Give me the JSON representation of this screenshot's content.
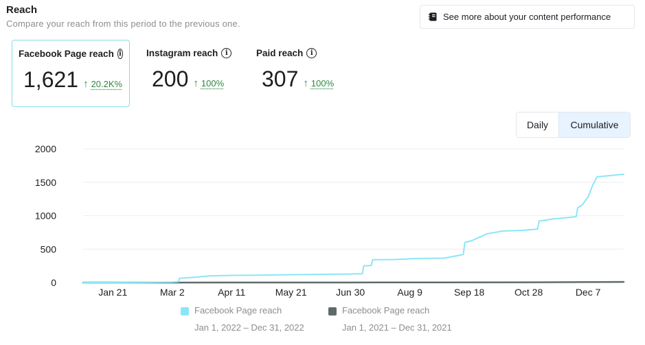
{
  "header": {
    "title": "Reach",
    "subtitle": "Compare your reach from this period to the previous one."
  },
  "performance_button": {
    "label": "See more about your content performance",
    "icon": "notebook-icon"
  },
  "metrics": [
    {
      "label": "Facebook Page reach",
      "value": "1,621",
      "change": "20.2K%"
    },
    {
      "label": "Instagram reach",
      "value": "200",
      "change": "100%"
    },
    {
      "label": "Paid reach",
      "value": "307",
      "change": "100%"
    }
  ],
  "toggle": {
    "daily": "Daily",
    "cumulative": "Cumulative",
    "selected": "cumulative"
  },
  "colors": {
    "current": "#8ae6f7",
    "previous": "#5f6b6a",
    "accent_border": "#86dbeb",
    "positive": "#2e8540"
  },
  "legend": [
    {
      "name": "Facebook Page reach",
      "range": "Jan 1, 2022 – Dec 31, 2022"
    },
    {
      "name": "Facebook Page reach",
      "range": "Jan 1, 2021 – Dec 31, 2021"
    }
  ],
  "chart_data": {
    "type": "line",
    "title": "",
    "xlabel": "",
    "ylabel": "",
    "ylim": [
      0,
      2000
    ],
    "y_ticks": [
      0,
      500,
      1000,
      1500,
      2000
    ],
    "x_ticks": [
      "Jan 21",
      "Mar 2",
      "Apr 11",
      "May 21",
      "Jun 30",
      "Aug 9",
      "Sep 18",
      "Oct 28",
      "Dec 7"
    ],
    "x_tick_days": [
      20,
      60,
      100,
      140,
      180,
      220,
      260,
      300,
      340
    ],
    "x_range_days": [
      0,
      364
    ],
    "grid": true,
    "legend_position": "bottom",
    "series": [
      {
        "name": "Facebook Page reach",
        "range": "Jan 1, 2022 – Dec 31, 2022",
        "x_days": [
          0,
          20,
          40,
          60,
          64,
          65,
          75,
          85,
          100,
          120,
          140,
          160,
          180,
          188,
          189,
          194,
          195,
          210,
          225,
          243,
          256,
          257,
          262,
          267,
          272,
          280,
          282,
          296,
          306,
          307,
          316,
          332,
          333,
          336,
          340,
          343,
          346,
          364
        ],
        "values": [
          0,
          0,
          2,
          8,
          12,
          65,
          80,
          100,
          108,
          112,
          118,
          123,
          128,
          132,
          250,
          255,
          340,
          345,
          360,
          365,
          420,
          600,
          630,
          680,
          730,
          760,
          770,
          780,
          800,
          920,
          950,
          985,
          1120,
          1160,
          1280,
          1450,
          1580,
          1621
        ]
      },
      {
        "name": "Facebook Page reach",
        "range": "Jan 1, 2021 – Dec 31, 2021",
        "x_days": [
          0,
          100,
          200,
          300,
          340,
          364
        ],
        "values": [
          0,
          1,
          2,
          4,
          8,
          10
        ]
      }
    ]
  }
}
